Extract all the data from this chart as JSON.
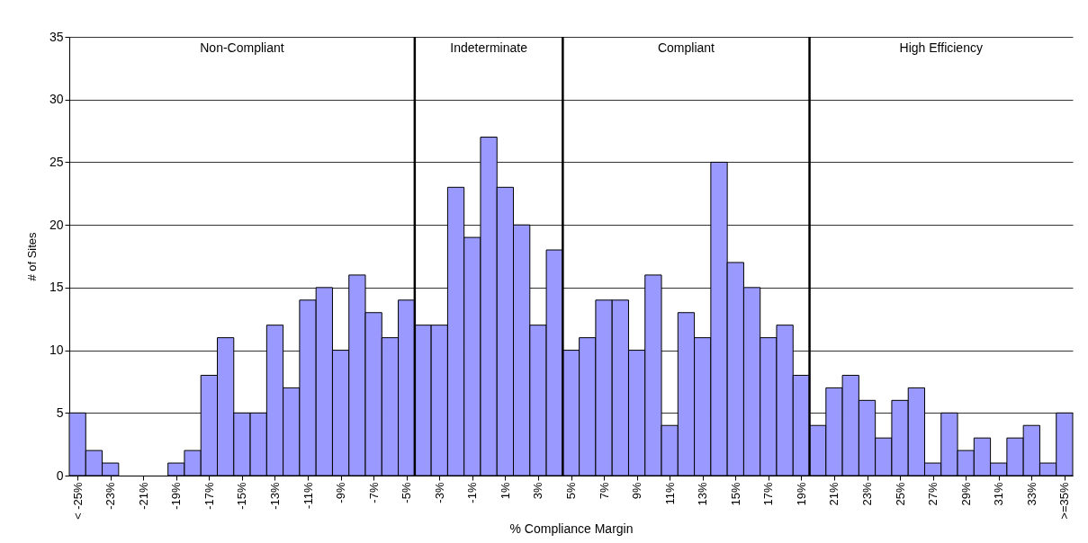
{
  "chart_data": {
    "type": "bar",
    "xlabel": "% Compliance Margin",
    "ylabel": "# of Sites",
    "x": [
      -25,
      -24,
      -23,
      -22,
      -21,
      -20,
      -19,
      -18,
      -17,
      -16,
      -15,
      -14,
      -13,
      -12,
      -11,
      -10,
      -9,
      -8,
      -7,
      -6,
      -5,
      -4,
      -3,
      -2,
      -1,
      0,
      1,
      2,
      3,
      4,
      5,
      6,
      7,
      8,
      9,
      10,
      11,
      12,
      13,
      14,
      15,
      16,
      17,
      18,
      19,
      20,
      21,
      22,
      23,
      24,
      25,
      26,
      27,
      28,
      29,
      30,
      31,
      32,
      33,
      34,
      35
    ],
    "values": [
      5,
      2,
      1,
      0,
      0,
      0,
      1,
      2,
      8,
      11,
      5,
      5,
      12,
      7,
      14,
      15,
      10,
      16,
      13,
      11,
      14,
      12,
      12,
      23,
      19,
      27,
      23,
      20,
      12,
      18,
      10,
      11,
      14,
      14,
      10,
      16,
      4,
      13,
      11,
      25,
      17,
      15,
      11,
      12,
      8,
      4,
      7,
      8,
      6,
      3,
      6,
      7,
      1,
      5,
      2,
      3,
      1,
      3,
      4,
      1,
      5
    ],
    "color": "#9999ff",
    "xlim": [
      -25.5,
      35.5
    ],
    "xticks": [
      {
        "value": -25,
        "label": "< -25%"
      },
      {
        "value": -23,
        "label": "-23%"
      },
      {
        "value": -21,
        "label": "-21%"
      },
      {
        "value": -19,
        "label": "-19%"
      },
      {
        "value": -17,
        "label": "-17%"
      },
      {
        "value": -15,
        "label": "-15%"
      },
      {
        "value": -13,
        "label": "-13%"
      },
      {
        "value": -11,
        "label": "-11%"
      },
      {
        "value": -9,
        "label": "-9%"
      },
      {
        "value": -7,
        "label": "-7%"
      },
      {
        "value": -5,
        "label": "-5%"
      },
      {
        "value": -3,
        "label": "-3%"
      },
      {
        "value": -1,
        "label": "-1%"
      },
      {
        "value": 1,
        "label": "1%"
      },
      {
        "value": 3,
        "label": "3%"
      },
      {
        "value": 5,
        "label": "5%"
      },
      {
        "value": 7,
        "label": "7%"
      },
      {
        "value": 9,
        "label": "9%"
      },
      {
        "value": 11,
        "label": "11%"
      },
      {
        "value": 13,
        "label": "13%"
      },
      {
        "value": 15,
        "label": "15%"
      },
      {
        "value": 17,
        "label": "17%"
      },
      {
        "value": 19,
        "label": "19%"
      },
      {
        "value": 21,
        "label": "21%"
      },
      {
        "value": 23,
        "label": "23%"
      },
      {
        "value": 25,
        "label": "25%"
      },
      {
        "value": 27,
        "label": "27%"
      },
      {
        "value": 29,
        "label": "29%"
      },
      {
        "value": 31,
        "label": "31%"
      },
      {
        "value": 33,
        "label": "33%"
      },
      {
        "value": 35,
        "label": ">=35%"
      }
    ],
    "ylim": [
      0,
      35
    ],
    "yticks": [
      0,
      5,
      10,
      15,
      20,
      25,
      30,
      35
    ],
    "grid": "y",
    "ref_lines": [
      {
        "axis": "x",
        "value": -4.5,
        "color": "#000000"
      },
      {
        "axis": "x",
        "value": 4.5,
        "color": "#000000"
      },
      {
        "axis": "x",
        "value": 19.5,
        "color": "#000000"
      }
    ],
    "annotations": [
      "Non-Compliant",
      "Indeterminate",
      "Compliant",
      "High Efficiency"
    ]
  }
}
